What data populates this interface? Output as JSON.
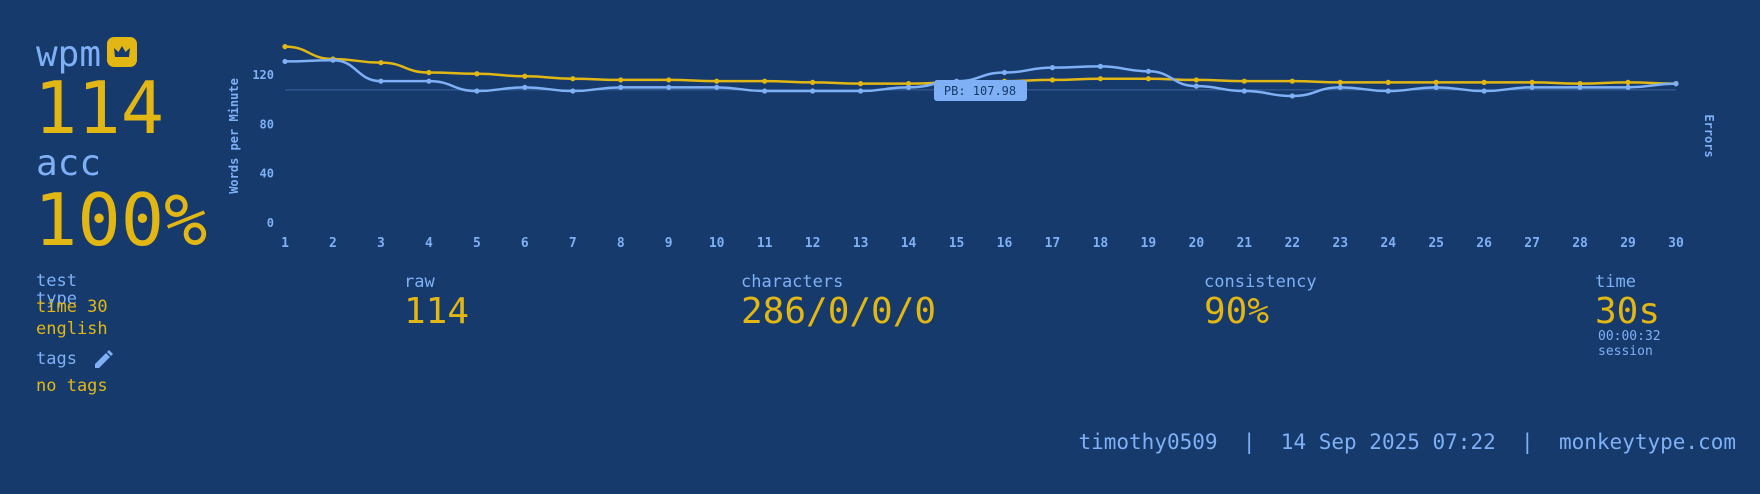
{
  "wpm": {
    "label": "wpm",
    "value": "114"
  },
  "acc": {
    "label": "acc",
    "value": "100%"
  },
  "test_type": {
    "label": "test type",
    "line1": "time 30",
    "line2": "english"
  },
  "tags": {
    "label": "tags",
    "value": "no tags"
  },
  "raw": {
    "label": "raw",
    "value": "114"
  },
  "characters": {
    "label": "characters",
    "value": "286/0/0/0"
  },
  "consistency": {
    "label": "consistency",
    "value": "90%"
  },
  "time": {
    "label": "time",
    "value": "30s",
    "session_time": "00:00:32",
    "session_label": "session"
  },
  "footer": {
    "username": "timothy0509",
    "separator": "|",
    "date": "14 Sep 2025 07:22",
    "site": "monkeytype.com"
  },
  "colors": {
    "background": "#163a6c",
    "main": "#e2b714",
    "sub": "#7fb0f5"
  },
  "icons": {
    "crown": "crown-icon",
    "edit": "pencil-icon"
  },
  "chart_data": {
    "type": "line",
    "ylabel": "Words per Minute",
    "y2label": "Errors",
    "ylim": [
      0,
      140
    ],
    "yticks": [
      0,
      40,
      80,
      120
    ],
    "x": [
      1,
      2,
      3,
      4,
      5,
      6,
      7,
      8,
      9,
      10,
      11,
      12,
      13,
      14,
      15,
      16,
      17,
      18,
      19,
      20,
      21,
      22,
      23,
      24,
      25,
      26,
      27,
      28,
      29,
      30
    ],
    "series": [
      {
        "name": "raw",
        "color": "#e2b714",
        "values": [
          143,
          133,
          130,
          122,
          121,
          119,
          117,
          116,
          116,
          115,
          115,
          114,
          113,
          113,
          114,
          115,
          116,
          117,
          117,
          116,
          115,
          115,
          114,
          114,
          114,
          114,
          114,
          113,
          114,
          113
        ]
      },
      {
        "name": "wpm",
        "color": "#7fb0f5",
        "values": [
          131,
          132,
          115,
          115,
          107,
          110,
          107,
          110,
          110,
          110,
          107,
          107,
          107,
          110,
          115,
          122,
          126,
          127,
          123,
          111,
          107,
          103,
          110,
          107,
          110,
          107,
          110,
          110,
          110,
          113
        ]
      }
    ],
    "annotation": {
      "label": "PB: 107.98",
      "y": 107.98
    }
  }
}
